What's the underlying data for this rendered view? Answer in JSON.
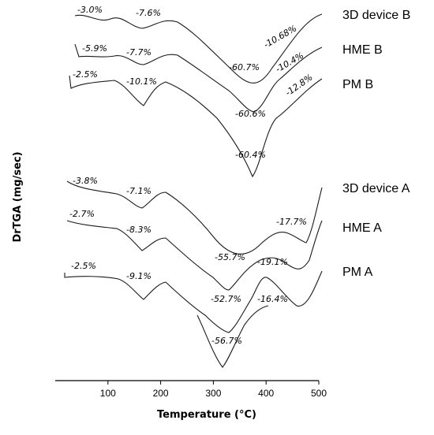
{
  "chart_data": {
    "type": "line",
    "xlabel": "Temperature (°C)",
    "ylabel": "DrTGA (mg/sec)",
    "xlim": [
      0,
      500
    ],
    "x_ticks": [
      100,
      200,
      300,
      400,
      500
    ],
    "grid": false,
    "series": [
      {
        "name": "3D device B",
        "group": "B",
        "peaks": [
          {
            "temp": 70,
            "label": "-3.0%"
          },
          {
            "temp": 165,
            "label": "-7.6%"
          },
          {
            "temp": 378,
            "label": "-60.7%"
          },
          {
            "temp": 430,
            "label": "-10.68%"
          }
        ]
      },
      {
        "name": "HME B",
        "group": "B",
        "peaks": [
          {
            "temp": 65,
            "label": "-5.9%"
          },
          {
            "temp": 165,
            "label": "-7.7%"
          },
          {
            "temp": 375,
            "label": "-60.6%"
          },
          {
            "temp": 428,
            "label": "-10.4%"
          }
        ]
      },
      {
        "name": "PM B",
        "group": "B",
        "peaks": [
          {
            "temp": 65,
            "label": "-2.5%"
          },
          {
            "temp": 167,
            "label": "-10.1%"
          },
          {
            "temp": 377,
            "label": "-60.4%"
          },
          {
            "temp": 432,
            "label": "-12.8%"
          }
        ]
      },
      {
        "name": "3D device A",
        "group": "A",
        "peaks": [
          {
            "temp": 70,
            "label": "-3.8%"
          },
          {
            "temp": 167,
            "label": "-7.1%"
          },
          {
            "temp": 425,
            "label": "-17.7%"
          }
        ]
      },
      {
        "name": "HME A",
        "group": "A",
        "peaks": [
          {
            "temp": 65,
            "label": "-2.7%"
          },
          {
            "temp": 167,
            "label": "-8.3%"
          },
          {
            "temp": 326,
            "label": "-55.7%"
          },
          {
            "temp": 425,
            "label": "-19.1%"
          }
        ]
      },
      {
        "name": "PM A",
        "group": "A",
        "peaks": [
          {
            "temp": 65,
            "label": "-2.5%"
          },
          {
            "temp": 167,
            "label": "-9.1%"
          },
          {
            "temp": 328,
            "label": "-52.7%"
          },
          {
            "temp": 326,
            "label": "-56.7%"
          },
          {
            "temp": 420,
            "label": "-16.4%"
          }
        ]
      }
    ]
  }
}
